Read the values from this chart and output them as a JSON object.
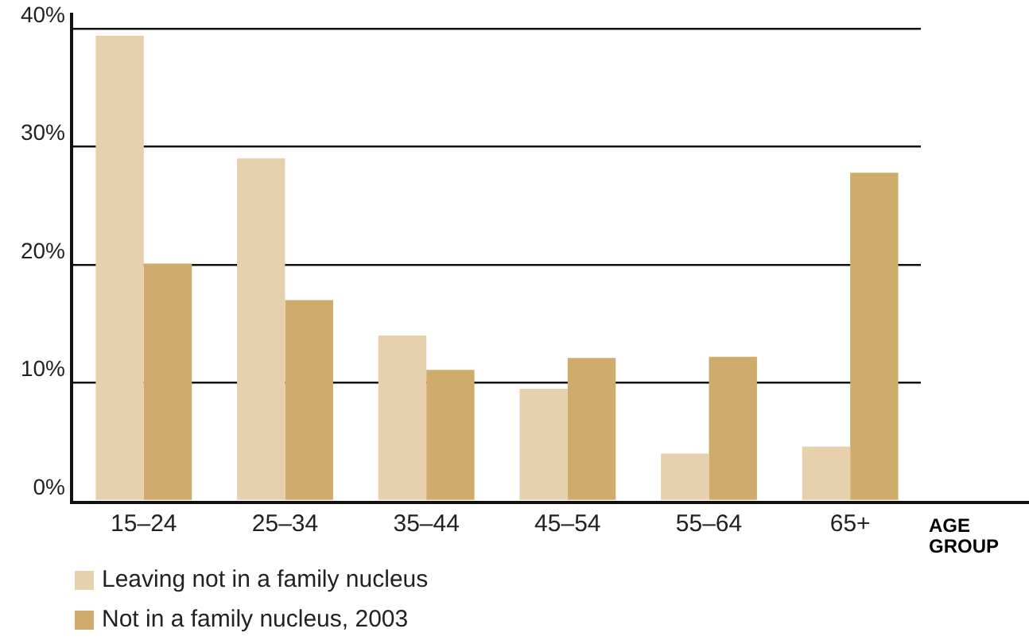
{
  "chart_data": {
    "type": "bar",
    "categories": [
      "15–24",
      "25–34",
      "35–44",
      "45–54",
      "55–64",
      "65+"
    ],
    "xlabel": "AGE GROUP",
    "series": [
      {
        "name": "Leaving not in a family nucleus",
        "color": "#e6d0ad",
        "values": [
          39.4,
          29.0,
          14.0,
          9.5,
          4.0,
          4.6
        ]
      },
      {
        "name": "Not in a family nucleus, 2003",
        "color": "#cfab6c",
        "values": [
          20.1,
          17.0,
          11.1,
          12.1,
          12.2,
          27.8
        ]
      }
    ],
    "ylim": [
      0,
      40
    ],
    "yticks": [
      {
        "value": 0,
        "label": "0%"
      },
      {
        "value": 10,
        "label": "10%"
      },
      {
        "value": 20,
        "label": "20%"
      },
      {
        "value": 30,
        "label": "30%"
      },
      {
        "value": 40,
        "label": "40%"
      }
    ],
    "grid": "y",
    "legend": "bottom left"
  }
}
